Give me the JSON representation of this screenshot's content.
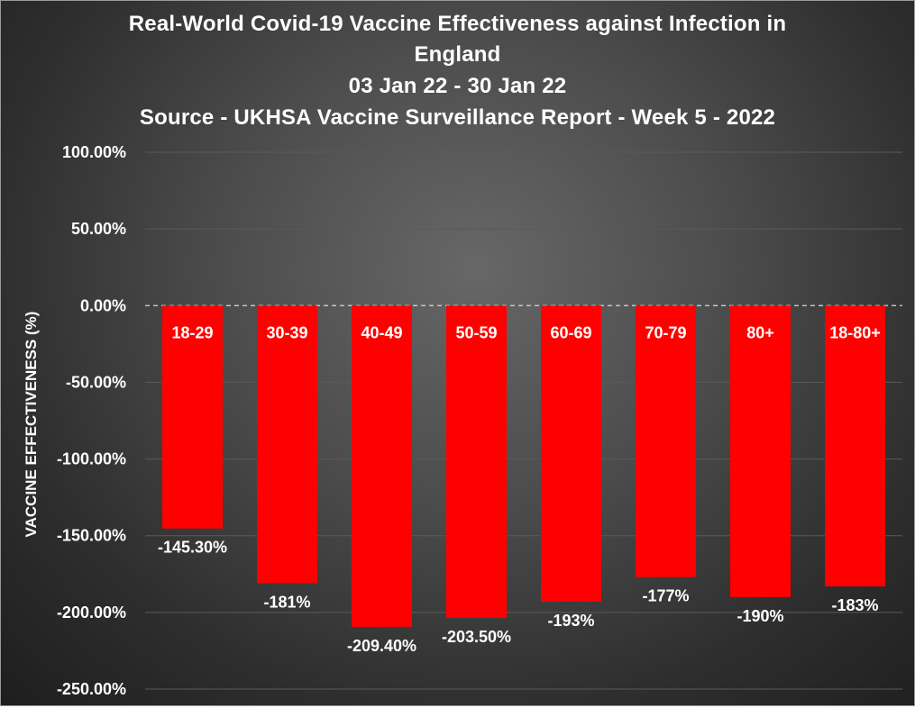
{
  "chart_data": {
    "type": "bar",
    "title_lines": [
      "Real-World Covid-19 Vaccine Effectiveness against Infection in",
      "England",
      "03 Jan 22 - 30 Jan 22",
      "Source - UKHSA Vaccine Surveillance Report - Week 5 - 2022"
    ],
    "ylabel": "VACCINE EFFECTIVENESS (%)",
    "xlabel": "",
    "ylim": [
      -250,
      100
    ],
    "yticks": [
      100,
      50,
      0,
      -50,
      -100,
      -150,
      -200,
      -250
    ],
    "ytick_labels": [
      "100.00%",
      "50.00%",
      "0.00%",
      "-50.00%",
      "-100.00%",
      "-150.00%",
      "-200.00%",
      "-250.00%"
    ],
    "categories": [
      "18-29",
      "30-39",
      "40-49",
      "50-59",
      "60-69",
      "70-79",
      "80+",
      "18-80+"
    ],
    "values": [
      -145.3,
      -181,
      -209.4,
      -203.5,
      -193,
      -177,
      -190,
      -183
    ],
    "value_labels": [
      "-145.30%",
      "-181%",
      "-209.40%",
      "-203.50%",
      "-193%",
      "-177%",
      "-190%",
      "-183%"
    ],
    "bar_color": "#ff0000",
    "grid": true,
    "legend": "none",
    "background_color": "#3c3c3c"
  }
}
